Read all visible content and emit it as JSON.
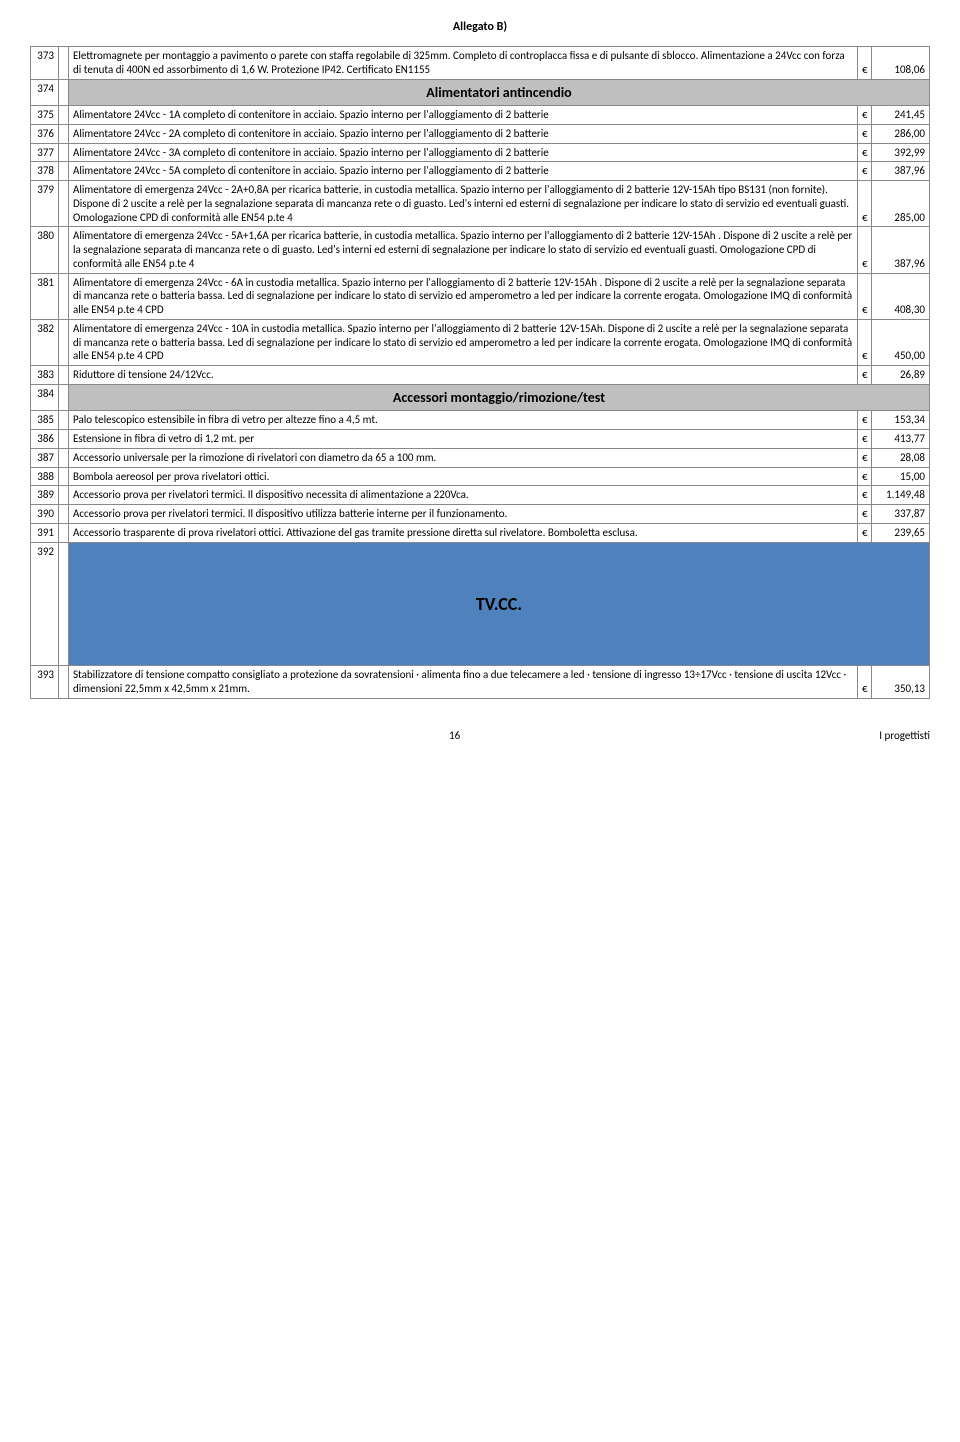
{
  "header": "Allegato B)",
  "currency": "€",
  "sections": [
    {
      "label": "Alimentatori antincendio"
    },
    {
      "label": "Accessori montaggio/rimozione/test"
    },
    {
      "label": "TV.CC."
    }
  ],
  "rows": [
    {
      "n": "373",
      "d": "Elettromagnete per montaggio a pavimento o parete con staffa regolabile di 325mm. Completo di controplacca fissa e di pulsante di sblocco. Alimentazione a 24Vcc con forza di tenuta di 400N ed assorbimento di 1,6 W. Protezione IP42. Certificato EN1155",
      "p": "108,06"
    },
    {
      "n": "374",
      "section": 0
    },
    {
      "n": "375",
      "d": "Alimentatore 24Vcc - 1A completo di contenitore in acciaio. Spazio interno per l'alloggiamento di 2 batterie",
      "p": "241,45"
    },
    {
      "n": "376",
      "d": "Alimentatore 24Vcc - 2A completo di contenitore in acciaio. Spazio interno per l'alloggiamento di 2 batterie",
      "p": "286,00"
    },
    {
      "n": "377",
      "d": "Alimentatore 24Vcc - 3A completo di contenitore in acciaio. Spazio interno per l'alloggiamento di 2 batterie",
      "p": "392,99"
    },
    {
      "n": "378",
      "d": "Alimentatore 24Vcc - 5A completo di contenitore in acciaio. Spazio interno per l'alloggiamento di 2 batterie",
      "p": "387,96"
    },
    {
      "n": "379",
      "d": "Alimentatore di emergenza 24Vcc - 2A+0,8A per ricarica batterie,  in custodia metallica. Spazio interno per l'alloggiamento di 2 batterie 12V-15Ah tipo BS131 (non fornite). Dispone di 2 uscite a relè per la segnalazione separata di mancanza rete o di guasto. Led's interni ed esterni di segnalazione per indicare lo stato di servizio ed eventuali guasti. Omologazione CPD di conformità alle EN54 p.te 4",
      "p": "285,00"
    },
    {
      "n": "380",
      "d": "Alimentatore di emergenza 24Vcc - 5A+1,6A per ricarica batterie,  in custodia metallica. Spazio interno per l'alloggiamento di 2 batterie 12V-15Ah . Dispone di 2 uscite a relè per la segnalazione separata di mancanza rete o di guasto. Led's interni ed esterni di segnalazione per indicare lo stato di servizio ed eventuali guasti. Omologazione CPD di conformità alle EN54 p.te 4",
      "p": "387,96"
    },
    {
      "n": "381",
      "d": "Alimentatore di emergenza 24Vcc - 6A in custodia metallica. Spazio interno per l'alloggiamento di 2 batterie 12V-15Ah . Dispone di 2 uscite a relè per la segnalazione separata di mancanza rete o batteria bassa. Led di segnalazione per indicare lo stato di servizio ed amperometro a led per indicare la corrente erogata. Omologazione IMQ di conformità alle EN54 p.te 4 CPD",
      "p": "408,30"
    },
    {
      "n": "382",
      "d": "Alimentatore di emergenza 24Vcc - 10A in custodia metallica. Spazio interno per l'alloggiamento di 2 batterie 12V-15Ah. Dispone di 2 uscite a relè per la segnalazione separata di mancanza rete o batteria bassa. Led di segnalazione per indicare lo stato di servizio ed amperometro a led per indicare la corrente erogata. Omologazione IMQ di conformità alle EN54 p.te 4  CPD",
      "p": "450,00"
    },
    {
      "n": "383",
      "d": "Riduttore di tensione 24/12Vcc.",
      "p": "26,89"
    },
    {
      "n": "384",
      "section": 1
    },
    {
      "n": "385",
      "d": "Palo telescopico estensibile in fibra di vetro per altezze fino a 4,5 mt.",
      "p": "153,34"
    },
    {
      "n": "386",
      "d": "Estensione in fibra di vetro di 1,2 mt. per",
      "p": "413,77"
    },
    {
      "n": "387",
      "d": "Accessorio universale per la rimozione di rivelatori con diametro da 65 a 100 mm.",
      "p": "28,08"
    },
    {
      "n": "388",
      "d": "Bombola aereosol per prova rivelatori ottici.",
      "p": "15,00"
    },
    {
      "n": "389",
      "d": "Accessorio  prova per rivelatori termici. Il dispositivo necessita di alimentazione a 220Vca.",
      "p": "1.149,48"
    },
    {
      "n": "390",
      "d": "Accessorio  prova per rivelatori termici. Il dispositivo utilizza batterie interne per il funzionamento.",
      "p": "337,87"
    },
    {
      "n": "391",
      "d": "Accessorio trasparente di prova rivelatori ottici. Attivazione del gas tramite pressione diretta sul rivelatore. Bomboletta  esclusa.",
      "p": "239,65"
    },
    {
      "n": "392",
      "section": 2,
      "blue": true
    },
    {
      "n": "393",
      "d": "Stabilizzatore di tensione compatto consigliato a protezione da sovratensioni ·  alimenta fino a due telecamere a led · tensione di ingresso 13÷17Vcc · tensione di uscita 12Vcc · dimensioni 22,5mm x 42,5mm x 21mm.",
      "p": "350,13"
    }
  ],
  "footer": {
    "page": "16",
    "right": "I progettisti"
  }
}
